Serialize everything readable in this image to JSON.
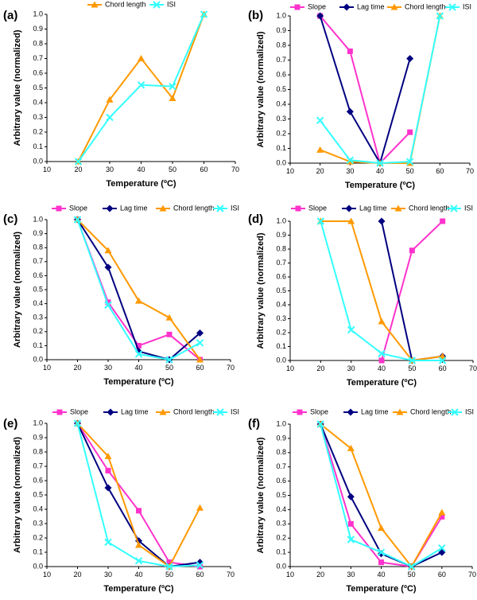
{
  "series_styles": {
    "Slope": {
      "color": "#ff33cc",
      "marker": "square"
    },
    "Lag time": {
      "color": "#000080",
      "marker": "diamond"
    },
    "Chord length": {
      "color": "#ff9900",
      "marker": "triangle"
    },
    "ISI": {
      "color": "#33ffff",
      "marker": "cross"
    }
  },
  "chart_data": [
    {
      "type": "line",
      "panel_label": "(a)",
      "xlabel": "Temperature (ºC)",
      "ylabel": "Arbitrary value (normalized)",
      "xlim": [
        10,
        70
      ],
      "ylim": [
        0,
        1.0
      ],
      "xticks": [
        "10",
        "20",
        "30",
        "40",
        "50",
        "60",
        "70"
      ],
      "yticks": [
        "0.0",
        "0.1",
        "0.2",
        "0.3",
        "0.4",
        "0.5",
        "0.6",
        "0.7",
        "0.8",
        "0.9",
        "1.0"
      ],
      "x": [
        20,
        30,
        40,
        50,
        60
      ],
      "series": [
        {
          "name": "Chord length",
          "values": [
            0.0,
            0.42,
            0.7,
            0.43,
            1.0
          ]
        },
        {
          "name": "ISI",
          "values": [
            0.0,
            0.3,
            0.52,
            0.51,
            1.0
          ]
        }
      ]
    },
    {
      "type": "line",
      "panel_label": "(b)",
      "xlabel": "Temperature (ºC)",
      "ylabel": "Arbitrary value (normalized)",
      "xlim": [
        10,
        70
      ],
      "ylim": [
        0,
        1.0
      ],
      "xticks": [
        "10",
        "20",
        "30",
        "40",
        "50",
        "60",
        "70"
      ],
      "yticks": [
        "0.0",
        "0.1",
        "0.2",
        "0.3",
        "0.4",
        "0.5",
        "0.6",
        "0.7",
        "0.8",
        "0.9",
        "1.0"
      ],
      "x": [
        20,
        30,
        40,
        50,
        60
      ],
      "series": [
        {
          "name": "Slope",
          "values": [
            1.0,
            0.76,
            0.0,
            0.21,
            null
          ]
        },
        {
          "name": "Lag time",
          "values": [
            1.0,
            0.35,
            0.0,
            0.71,
            null
          ]
        },
        {
          "name": "Chord length",
          "values": [
            0.09,
            0.01,
            0.0,
            0.0,
            1.0
          ]
        },
        {
          "name": "ISI",
          "values": [
            0.29,
            0.02,
            0.0,
            0.01,
            1.0
          ]
        }
      ]
    },
    {
      "type": "line",
      "panel_label": "(c)",
      "xlabel": "Temperature (ºC)",
      "ylabel": "Arbitrary value (normalized)",
      "xlim": [
        10,
        70
      ],
      "ylim": [
        0,
        1.0
      ],
      "xticks": [
        "10",
        "20",
        "30",
        "40",
        "50",
        "60",
        "70"
      ],
      "yticks": [
        "0.0",
        "0.1",
        "0.2",
        "0.3",
        "0.4",
        "0.5",
        "0.6",
        "0.7",
        "0.8",
        "0.9",
        "1.0"
      ],
      "x": [
        20,
        30,
        40,
        50,
        60
      ],
      "series": [
        {
          "name": "Slope",
          "values": [
            1.0,
            0.41,
            0.1,
            0.18,
            0.0
          ]
        },
        {
          "name": "Lag time",
          "values": [
            1.0,
            0.66,
            0.06,
            0.0,
            0.19
          ]
        },
        {
          "name": "Chord length",
          "values": [
            1.0,
            0.78,
            0.42,
            0.3,
            0.0
          ]
        },
        {
          "name": "ISI",
          "values": [
            1.0,
            0.39,
            0.04,
            0.0,
            0.12
          ]
        }
      ]
    },
    {
      "type": "line",
      "panel_label": "(d)",
      "xlabel": "Temperature (ºC)",
      "ylabel": "Arbitrary value (normalized)",
      "xlim": [
        10,
        70
      ],
      "ylim": [
        0,
        1.0
      ],
      "xticks": [
        "10",
        "20",
        "30",
        "40",
        "50",
        "60",
        "70"
      ],
      "yticks": [
        "0.0",
        "0.1",
        "0.2",
        "0.3",
        "0.4",
        "0.5",
        "0.6",
        "0.7",
        "0.8",
        "0.9",
        "1.0"
      ],
      "x": [
        20,
        30,
        40,
        50,
        60
      ],
      "series": [
        {
          "name": "Slope",
          "values": [
            null,
            null,
            0.0,
            0.79,
            1.0
          ]
        },
        {
          "name": "Lag time",
          "values": [
            null,
            null,
            1.0,
            0.0,
            0.03
          ]
        },
        {
          "name": "Chord length",
          "values": [
            1.0,
            1.0,
            0.28,
            0.0,
            0.03
          ]
        },
        {
          "name": "ISI",
          "values": [
            1.0,
            0.22,
            0.05,
            0.0,
            0.0
          ]
        }
      ]
    },
    {
      "type": "line",
      "panel_label": "(e)",
      "xlabel": "Temperature (ºC)",
      "ylabel": "Arbitrary value (normalized)",
      "xlim": [
        10,
        70
      ],
      "ylim": [
        0,
        1.0
      ],
      "xticks": [
        "10",
        "20",
        "30",
        "40",
        "50",
        "60",
        "70"
      ],
      "yticks": [
        "0.0",
        "0.1",
        "0.2",
        "0.3",
        "0.4",
        "0.5",
        "0.6",
        "0.7",
        "0.8",
        "0.9",
        "1.0"
      ],
      "x": [
        20,
        30,
        40,
        50,
        60
      ],
      "series": [
        {
          "name": "Slope",
          "values": [
            1.0,
            0.67,
            0.39,
            0.03,
            0.0
          ]
        },
        {
          "name": "Lag time",
          "values": [
            1.0,
            0.55,
            0.18,
            0.0,
            0.03
          ]
        },
        {
          "name": "Chord length",
          "values": [
            1.0,
            0.77,
            0.15,
            0.0,
            0.41
          ]
        },
        {
          "name": "ISI",
          "values": [
            1.0,
            0.17,
            0.04,
            0.0,
            0.01
          ]
        }
      ]
    },
    {
      "type": "line",
      "panel_label": "(f)",
      "xlabel": "Temperature (ºC)",
      "ylabel": "Arbitrary value (normalized)",
      "xlim": [
        10,
        70
      ],
      "ylim": [
        0,
        1.0
      ],
      "xticks": [
        "10",
        "20",
        "30",
        "40",
        "50",
        "60",
        "70"
      ],
      "yticks": [
        "0.0",
        "0.1",
        "0.2",
        "0.3",
        "0.4",
        "0.5",
        "0.6",
        "0.7",
        "0.8",
        "0.9",
        "1.0"
      ],
      "x": [
        20,
        30,
        40,
        50,
        60
      ],
      "series": [
        {
          "name": "Slope",
          "values": [
            1.0,
            0.3,
            0.03,
            0.0,
            0.35
          ]
        },
        {
          "name": "Lag time",
          "values": [
            1.0,
            0.49,
            0.09,
            0.0,
            0.1
          ]
        },
        {
          "name": "Chord length",
          "values": [
            1.0,
            0.83,
            0.27,
            0.0,
            0.38
          ]
        },
        {
          "name": "ISI",
          "values": [
            1.0,
            0.19,
            0.1,
            0.0,
            0.13
          ]
        }
      ]
    }
  ]
}
